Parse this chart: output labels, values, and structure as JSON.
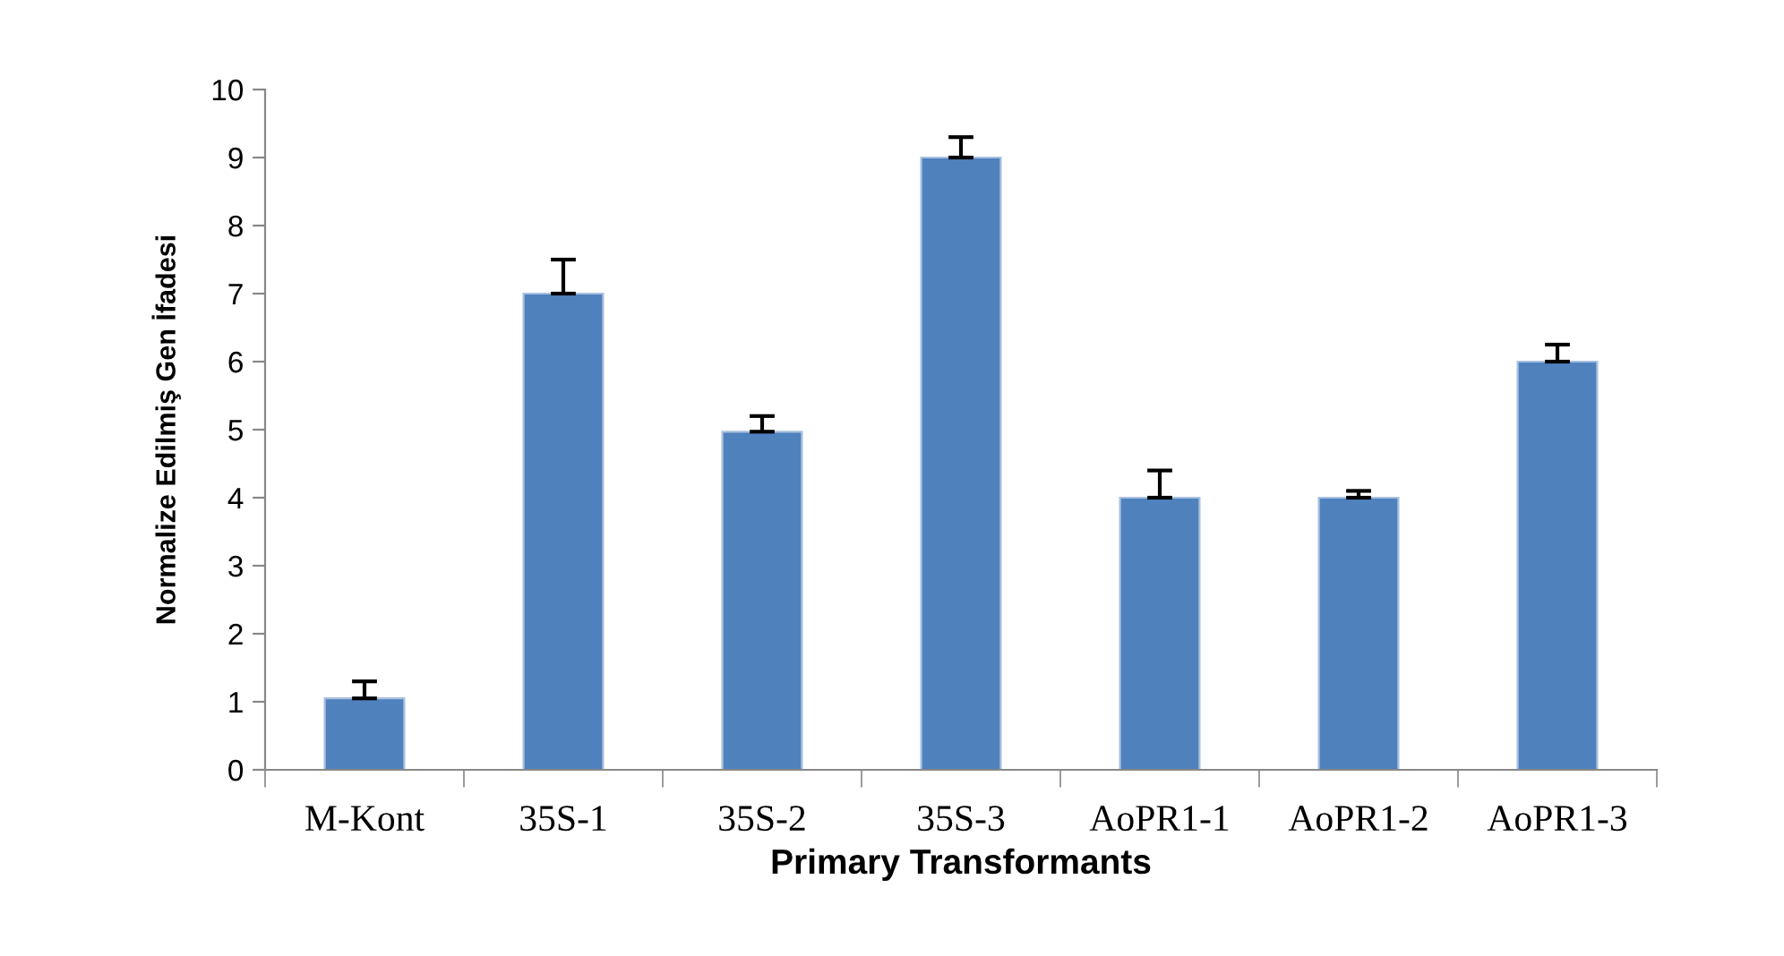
{
  "chart_data": {
    "type": "bar",
    "xlabel": "Primary Transformants",
    "ylabel": "Normalize Edilmiş Gen İfadesi",
    "categories": [
      "M-Kont",
      "35S-1",
      "35S-2",
      "35S-3",
      "AoPR1-1",
      "AoPR1-2",
      "AoPR1-3"
    ],
    "values": [
      1.05,
      7.0,
      4.97,
      9.0,
      4.0,
      4.0,
      6.0
    ],
    "errors": [
      [
        1.05,
        1.3
      ],
      [
        7.0,
        7.5
      ],
      [
        4.97,
        5.2
      ],
      [
        9.0,
        9.3
      ],
      [
        4.0,
        4.4
      ],
      [
        4.0,
        4.1
      ],
      [
        6.0,
        6.25
      ]
    ],
    "color": "#4f81bd",
    "ylim": [
      0,
      10
    ],
    "yticks": [
      0,
      1,
      2,
      3,
      4,
      5,
      6,
      7,
      8,
      9,
      10
    ],
    "grid": false,
    "legend": false
  }
}
